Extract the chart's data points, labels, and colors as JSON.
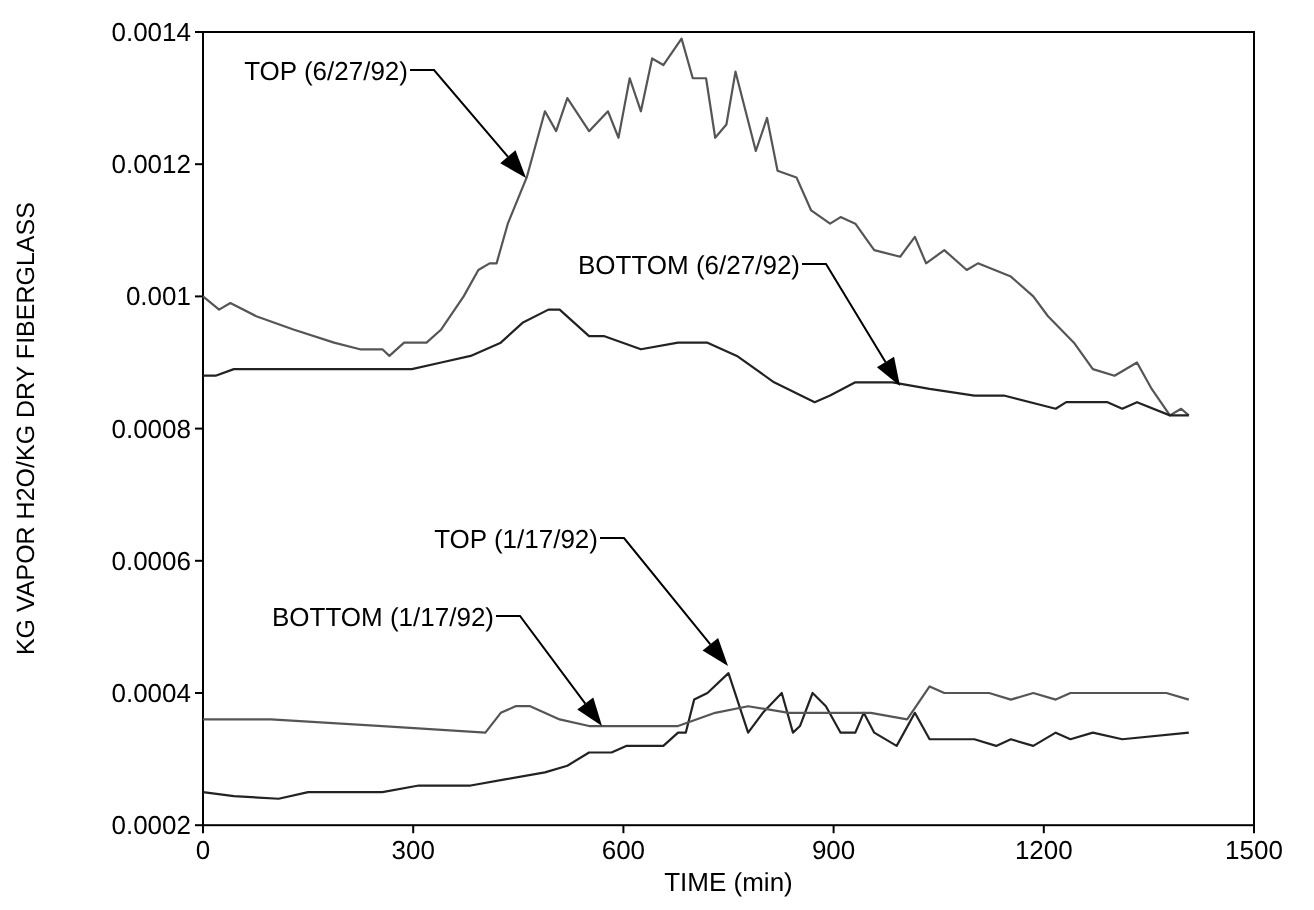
{
  "chart_data": {
    "type": "line",
    "xlabel": "TIME (min)",
    "ylabel": "KG VAPOR H2O/KG DRY FIBERGLASS",
    "xlim": [
      0,
      1500
    ],
    "xticks": [
      0,
      300,
      600,
      900,
      1200,
      1500
    ],
    "ylim": [
      0.0002,
      0.0014
    ],
    "yticks": [
      0.0002,
      0.0004,
      0.0006,
      0.0008,
      0.001,
      0.0012,
      0.0014
    ],
    "grid": false,
    "marker": "none",
    "line_style": "solid",
    "series": [
      {
        "color": "#555555",
        "x": [
          0,
          23,
          39,
          76,
          129,
          187,
          224,
          256,
          266,
          287,
          319,
          340,
          372,
          393,
          409,
          419,
          435,
          462,
          488,
          504,
          520,
          551,
          578,
          593,
          609,
          625,
          641,
          657,
          683,
          699,
          718,
          731,
          747,
          760,
          789,
          805,
          820,
          847,
          868,
          895,
          910,
          931,
          958,
          995,
          1016,
          1032,
          1058,
          1090,
          1106,
          1153,
          1185,
          1206,
          1243,
          1270,
          1301,
          1333,
          1354,
          1380,
          1396,
          1407
        ],
        "values": [
          0.001,
          0.00098,
          0.00099,
          0.00097,
          0.00095,
          0.00093,
          0.00092,
          0.00092,
          0.00091,
          0.00093,
          0.00093,
          0.00095,
          0.001,
          0.00104,
          0.00105,
          0.00105,
          0.00111,
          0.00118,
          0.00128,
          0.00125,
          0.0013,
          0.00125,
          0.00128,
          0.00124,
          0.00133,
          0.00128,
          0.00136,
          0.00135,
          0.00139,
          0.00133,
          0.00133,
          0.00124,
          0.00126,
          0.00134,
          0.00122,
          0.00127,
          0.00119,
          0.00118,
          0.00113,
          0.00111,
          0.00112,
          0.00111,
          0.00107,
          0.00106,
          0.00109,
          0.00105,
          0.00107,
          0.00104,
          0.00105,
          0.00103,
          0.001,
          0.00097,
          0.00093,
          0.00089,
          0.00088,
          0.0009,
          0.00086,
          0.00082,
          0.00083,
          0.00082
        ]
      },
      {
        "color": "#222222",
        "x": [
          0,
          18,
          44,
          150,
          256,
          298,
          340,
          382,
          425,
          456,
          493,
          509,
          551,
          572,
          625,
          678,
          720,
          762,
          815,
          873,
          895,
          931,
          984,
          1037,
          1101,
          1143,
          1217,
          1232,
          1291,
          1312,
          1333,
          1380,
          1407
        ],
        "values": [
          0.00088,
          0.00088,
          0.00089,
          0.00089,
          0.00089,
          0.00089,
          0.0009,
          0.00091,
          0.00093,
          0.00096,
          0.00098,
          0.00098,
          0.00094,
          0.00094,
          0.00092,
          0.00093,
          0.00093,
          0.00091,
          0.00087,
          0.00084,
          0.00085,
          0.00087,
          0.00087,
          0.00086,
          0.00085,
          0.00085,
          0.00083,
          0.00084,
          0.00084,
          0.00083,
          0.00084,
          0.00082,
          0.00082
        ]
      },
      {
        "color": "#222222",
        "x": [
          0,
          44,
          108,
          150,
          256,
          308,
          382,
          435,
          488,
          520,
          551,
          583,
          604,
          657,
          678,
          689,
          701,
          720,
          750,
          778,
          799,
          826,
          842,
          852,
          870,
          889,
          910,
          931,
          943,
          958,
          990,
          1016,
          1037,
          1069,
          1101,
          1132,
          1153,
          1185,
          1217,
          1238,
          1270,
          1312,
          1407
        ],
        "values": [
          0.00025,
          0.000244,
          0.00024,
          0.00025,
          0.00025,
          0.00026,
          0.00026,
          0.00027,
          0.00028,
          0.00029,
          0.00031,
          0.00031,
          0.00032,
          0.00032,
          0.00034,
          0.00034,
          0.00039,
          0.0004,
          0.00043,
          0.00034,
          0.00037,
          0.0004,
          0.00034,
          0.00035,
          0.0004,
          0.00038,
          0.00034,
          0.00034,
          0.00037,
          0.00034,
          0.00032,
          0.00037,
          0.00033,
          0.00033,
          0.00033,
          0.00032,
          0.00033,
          0.00032,
          0.00034,
          0.00033,
          0.00034,
          0.00033,
          0.00034
        ]
      },
      {
        "color": "#555555",
        "x": [
          0,
          97,
          256,
          403,
          425,
          446,
          467,
          509,
          551,
          625,
          678,
          731,
          778,
          836,
          889,
          953,
          1005,
          1037,
          1058,
          1122,
          1153,
          1185,
          1217,
          1238,
          1312,
          1375,
          1407
        ],
        "values": [
          0.00036,
          0.00036,
          0.00035,
          0.00034,
          0.00037,
          0.00038,
          0.00038,
          0.00036,
          0.00035,
          0.00035,
          0.00035,
          0.00037,
          0.00038,
          0.00037,
          0.00037,
          0.00037,
          0.00036,
          0.00041,
          0.0004,
          0.0004,
          0.00039,
          0.0004,
          0.00039,
          0.0004,
          0.0004,
          0.0004,
          0.00039
        ]
      }
    ],
    "annotations": [
      "TOP (6/27/92)",
      "BOTTOM (6/27/92)",
      "TOP (1/17/92)",
      "BOTTOM (1/17/92)"
    ]
  }
}
